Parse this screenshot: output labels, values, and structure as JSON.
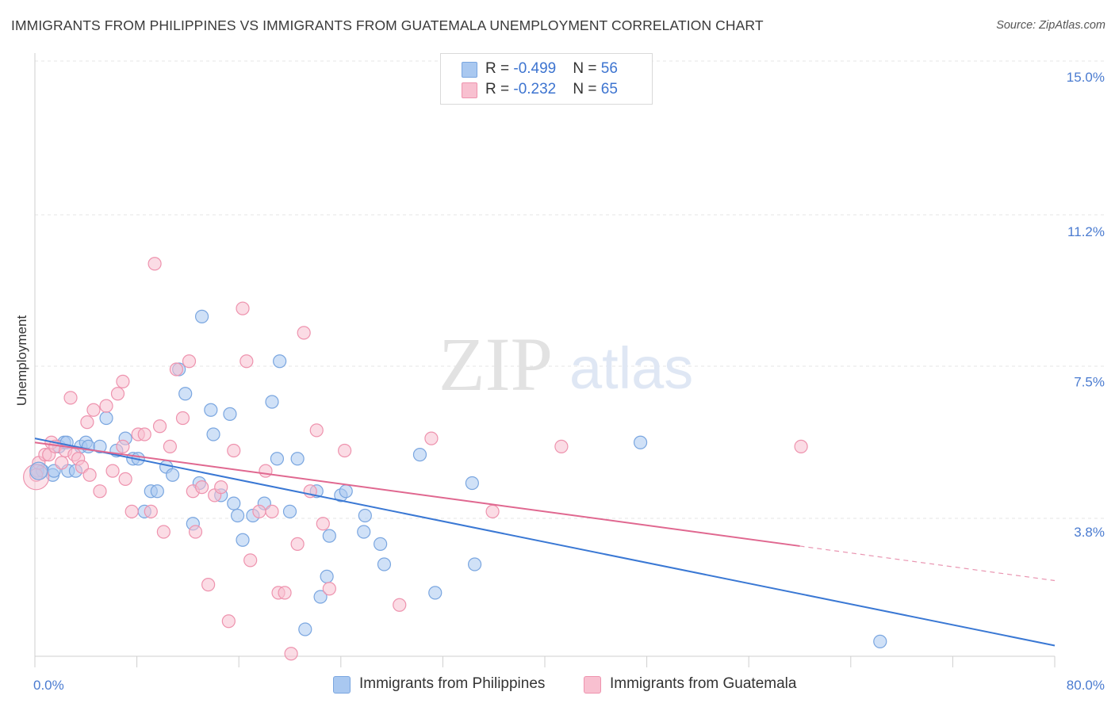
{
  "header": {
    "title": "IMMIGRANTS FROM PHILIPPINES VS IMMIGRANTS FROM GUATEMALA UNEMPLOYMENT CORRELATION CHART",
    "source": "Source: ZipAtlas.com"
  },
  "watermark": {
    "zip": "ZIP",
    "atlas": "atlas"
  },
  "legend_top": {
    "rows": [
      {
        "r_label": "R = ",
        "r_value": "-0.499",
        "n_label": "N = ",
        "n_value": "56",
        "color": "#a9c8f0",
        "border": "#7aa6e0"
      },
      {
        "r_label": "R = ",
        "r_value": "-0.232",
        "n_label": "N = ",
        "n_value": "65",
        "color": "#f8c0d0",
        "border": "#ee93ae"
      }
    ]
  },
  "legend_bottom": {
    "items": [
      {
        "label": "Immigrants from Philippines",
        "color": "#a9c8f0",
        "border": "#7aa6e0"
      },
      {
        "label": "Immigrants from Guatemala",
        "color": "#f8c0d0",
        "border": "#ee93ae"
      }
    ]
  },
  "chart_data": {
    "type": "scatter",
    "ylabel": "Unemployment",
    "xlabel": "",
    "xlim": [
      0,
      80
    ],
    "ylim": [
      0,
      15.7
    ],
    "x_tick_labels": [
      {
        "value": 0,
        "label": "0.0%"
      },
      {
        "value": 80,
        "label": "80.0%"
      }
    ],
    "y_tick_labels": [
      {
        "value": 3.8,
        "label": "3.8%"
      },
      {
        "value": 7.5,
        "label": "7.5%"
      },
      {
        "value": 11.2,
        "label": "11.2%"
      },
      {
        "value": 15.0,
        "label": "15.0%"
      }
    ],
    "grid": true,
    "legend_position": "top-center",
    "series": [
      {
        "name": "Immigrants from Philippines",
        "color": "#a9c8f0",
        "stroke": "#7aa6e0",
        "line_color": "#3a78d4",
        "trend": {
          "x0": 0,
          "y0": 6.1,
          "x1": 80,
          "y1": 1.0,
          "solid_until": 80
        },
        "points": [
          [
            0.2,
            5.3
          ],
          [
            0.6,
            5.3
          ],
          [
            1.4,
            5.2
          ],
          [
            1.5,
            5.3
          ],
          [
            1.9,
            5.9
          ],
          [
            2.3,
            6.0
          ],
          [
            2.5,
            6.0
          ],
          [
            2.6,
            5.3
          ],
          [
            3.2,
            5.3
          ],
          [
            3.6,
            5.9
          ],
          [
            4.0,
            6.0
          ],
          [
            4.2,
            5.9
          ],
          [
            5.1,
            5.9
          ],
          [
            5.6,
            6.6
          ],
          [
            6.4,
            5.8
          ],
          [
            7.1,
            6.1
          ],
          [
            7.7,
            5.6
          ],
          [
            8.1,
            5.6
          ],
          [
            8.6,
            4.3
          ],
          [
            9.1,
            4.8
          ],
          [
            9.6,
            4.8
          ],
          [
            10.3,
            5.4
          ],
          [
            10.8,
            5.2
          ],
          [
            11.3,
            7.8
          ],
          [
            11.8,
            7.2
          ],
          [
            12.4,
            4.0
          ],
          [
            12.9,
            5.0
          ],
          [
            13.1,
            9.1
          ],
          [
            13.8,
            6.8
          ],
          [
            14.0,
            6.2
          ],
          [
            14.6,
            4.7
          ],
          [
            15.3,
            6.7
          ],
          [
            15.6,
            4.5
          ],
          [
            15.9,
            4.2
          ],
          [
            16.3,
            3.6
          ],
          [
            17.1,
            4.2
          ],
          [
            18.0,
            4.5
          ],
          [
            18.6,
            7.0
          ],
          [
            19.0,
            5.6
          ],
          [
            19.2,
            8.0
          ],
          [
            20.0,
            4.3
          ],
          [
            20.6,
            5.6
          ],
          [
            21.2,
            1.4
          ],
          [
            22.1,
            4.8
          ],
          [
            22.4,
            2.2
          ],
          [
            22.9,
            2.7
          ],
          [
            23.1,
            3.7
          ],
          [
            24.0,
            4.7
          ],
          [
            24.4,
            4.8
          ],
          [
            25.8,
            3.8
          ],
          [
            25.9,
            4.2
          ],
          [
            27.1,
            3.5
          ],
          [
            27.4,
            3.0
          ],
          [
            30.2,
            5.7
          ],
          [
            31.4,
            2.3
          ],
          [
            34.3,
            5.0
          ],
          [
            34.5,
            3.0
          ],
          [
            47.5,
            6.0
          ],
          [
            66.3,
            1.1
          ]
        ]
      },
      {
        "name": "Immigrants from Guatemala",
        "color": "#f8c0d0",
        "stroke": "#ee93ae",
        "line_color": "#e06890",
        "trend": {
          "x0": 0,
          "y0": 6.0,
          "x1": 80,
          "y1": 2.6,
          "solid_until": 60
        },
        "points": [
          [
            0.1,
            5.2
          ],
          [
            0.3,
            5.5
          ],
          [
            0.8,
            5.7
          ],
          [
            1.1,
            5.7
          ],
          [
            1.3,
            6.0
          ],
          [
            1.6,
            5.9
          ],
          [
            2.1,
            5.5
          ],
          [
            2.4,
            5.8
          ],
          [
            2.8,
            7.1
          ],
          [
            3.1,
            5.7
          ],
          [
            3.4,
            5.6
          ],
          [
            3.7,
            5.4
          ],
          [
            4.1,
            6.5
          ],
          [
            4.3,
            5.2
          ],
          [
            4.6,
            6.8
          ],
          [
            5.1,
            4.8
          ],
          [
            5.6,
            6.9
          ],
          [
            6.1,
            5.3
          ],
          [
            6.5,
            7.2
          ],
          [
            6.9,
            7.5
          ],
          [
            6.9,
            5.9
          ],
          [
            7.1,
            5.1
          ],
          [
            7.6,
            4.3
          ],
          [
            8.1,
            6.2
          ],
          [
            8.6,
            6.2
          ],
          [
            9.1,
            4.3
          ],
          [
            9.4,
            10.4
          ],
          [
            9.8,
            6.4
          ],
          [
            10.1,
            3.8
          ],
          [
            10.6,
            5.9
          ],
          [
            11.1,
            7.8
          ],
          [
            11.6,
            6.6
          ],
          [
            12.1,
            8.0
          ],
          [
            12.4,
            4.8
          ],
          [
            12.6,
            3.8
          ],
          [
            13.1,
            4.9
          ],
          [
            13.6,
            2.5
          ],
          [
            14.1,
            4.7
          ],
          [
            14.6,
            4.9
          ],
          [
            15.2,
            1.6
          ],
          [
            15.6,
            5.8
          ],
          [
            16.3,
            9.3
          ],
          [
            16.6,
            8.0
          ],
          [
            16.9,
            3.1
          ],
          [
            17.6,
            4.3
          ],
          [
            18.1,
            5.3
          ],
          [
            18.6,
            4.3
          ],
          [
            19.1,
            2.3
          ],
          [
            19.6,
            2.3
          ],
          [
            20.1,
            0.8
          ],
          [
            20.6,
            3.5
          ],
          [
            21.1,
            8.7
          ],
          [
            21.6,
            4.8
          ],
          [
            22.1,
            6.3
          ],
          [
            22.6,
            4.0
          ],
          [
            23.1,
            2.4
          ],
          [
            24.3,
            5.8
          ],
          [
            28.6,
            2.0
          ],
          [
            31.1,
            6.1
          ],
          [
            35.9,
            4.3
          ],
          [
            41.3,
            5.9
          ],
          [
            60.1,
            5.9
          ]
        ]
      }
    ]
  }
}
